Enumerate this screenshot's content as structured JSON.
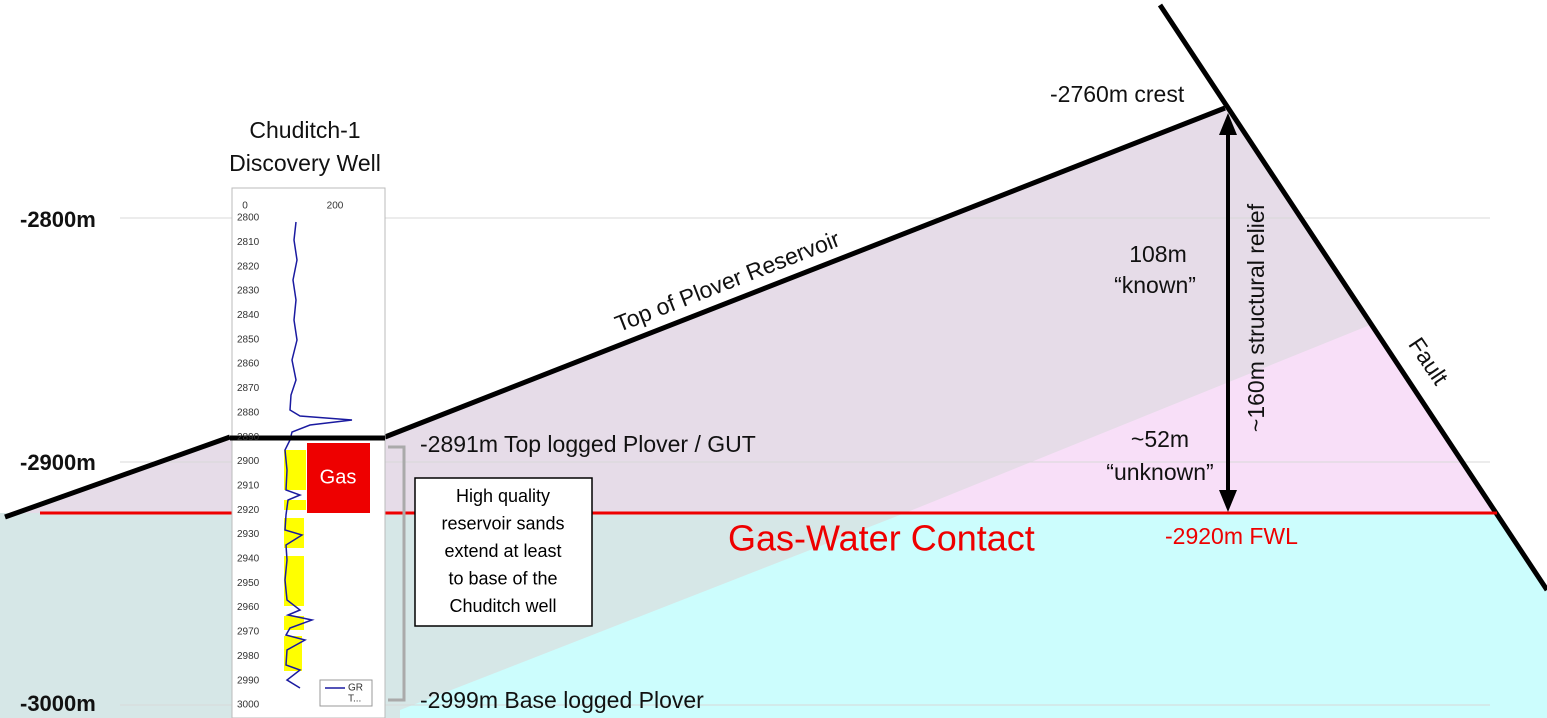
{
  "well": {
    "title": [
      "Chuditch-1",
      "Discovery Well"
    ],
    "log_axis": [
      "0",
      "200"
    ],
    "depth_ticks": [
      "2800",
      "2810",
      "2820",
      "2830",
      "2840",
      "2850",
      "2860",
      "2870",
      "2880",
      "2890",
      "2900",
      "2910",
      "2920",
      "2930",
      "2940",
      "2950",
      "2960",
      "2970",
      "2980",
      "2990",
      "3000"
    ],
    "legend": [
      "GR",
      "T..."
    ],
    "gas_label": "Gas"
  },
  "depth_scale": [
    "-2800m",
    "-2900m",
    "-3000m"
  ],
  "labels": {
    "crest": "-2760m crest",
    "top_reservoir": "Top of Plover Reservoir",
    "known_value": "108m",
    "known": "“known”",
    "unknown_value": "~52m",
    "unknown": "“unknown”",
    "relief": "~160m structural relief",
    "fault": "Fault",
    "top_logged": "-2891m Top logged Plover / GUT",
    "contact": "Gas-Water Contact",
    "fwl": "-2920m FWL",
    "base_logged": "-2999m Base logged Plover"
  },
  "note": [
    "High quality",
    "reservoir sands",
    "extend at least",
    "to base of the",
    "Chuditch well"
  ]
}
